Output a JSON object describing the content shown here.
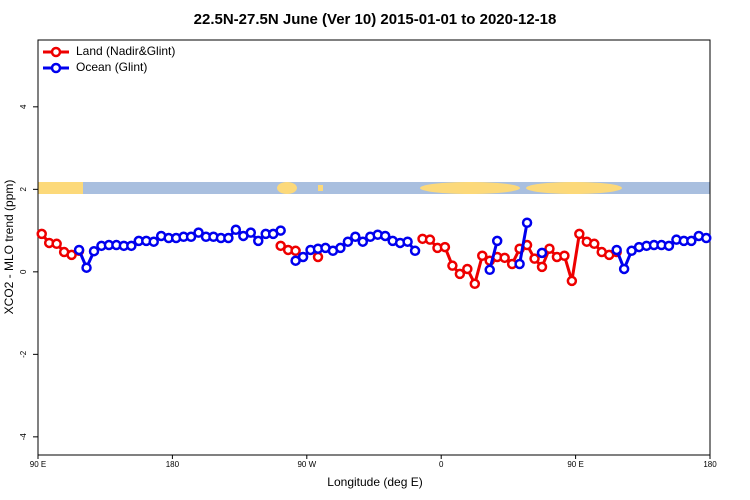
{
  "chart_data": {
    "type": "line",
    "title": "22.5N-27.5N June (Ver 10)   2015-01-01 to 2020-12-18",
    "x_label": "Longitude (deg E)",
    "y_label": "XCO2 - MLO trend (ppm)",
    "x": [
      92.5,
      97.5,
      102.5,
      107.5,
      112.5,
      117.5,
      122.5,
      127.5,
      132.5,
      137.5,
      142.5,
      147.5,
      152.5,
      157.5,
      162.5,
      167.5,
      172.5,
      177.5,
      182.5,
      187.5,
      192.5,
      197.5,
      202.5,
      207.5,
      212.5,
      217.5,
      222.5,
      227.5,
      232.5,
      237.5,
      242.5,
      247.5,
      252.5,
      257.5,
      262.5,
      267.5,
      272.5,
      277.5,
      282.5,
      287.5,
      292.5,
      297.5,
      302.5,
      307.5,
      312.5,
      317.5,
      322.5,
      327.5,
      332.5,
      337.5,
      342.5,
      347.5,
      352.5,
      357.5,
      362.5,
      367.5,
      372.5,
      377.5,
      382.5,
      387.5,
      392.5,
      397.5,
      402.5,
      407.5,
      412.5,
      417.5,
      422.5,
      427.5,
      432.5,
      437.5,
      442.5,
      447.5,
      452.5,
      457.5,
      462.5,
      467.5,
      472.5,
      477.5,
      482.5,
      487.5,
      492.5,
      497.5,
      502.5,
      507.5,
      512.5,
      517.5,
      522.5,
      527.5,
      532.5,
      537.5
    ],
    "series": [
      {
        "name": "Land (Nadir&Glint)",
        "color": "#ee0000",
        "values": [
          0.92,
          0.7,
          0.68,
          0.48,
          0.41,
          0.51,
          null,
          null,
          null,
          null,
          null,
          null,
          null,
          null,
          null,
          null,
          null,
          null,
          null,
          null,
          null,
          null,
          null,
          null,
          null,
          null,
          null,
          null,
          null,
          null,
          null,
          null,
          0.63,
          0.53,
          0.51,
          null,
          null,
          0.36,
          null,
          null,
          null,
          null,
          null,
          null,
          null,
          null,
          null,
          null,
          null,
          null,
          null,
          0.8,
          0.78,
          0.58,
          0.6,
          0.15,
          -0.05,
          0.07,
          -0.29,
          0.39,
          0.27,
          0.36,
          0.34,
          0.19,
          0.56,
          0.65,
          0.32,
          0.12,
          0.56,
          0.36,
          0.39,
          -0.22,
          0.92,
          0.73,
          0.68,
          0.48,
          0.41,
          0.48,
          null,
          null,
          null,
          null,
          null,
          null,
          null,
          null,
          null,
          null,
          null,
          null
        ]
      },
      {
        "name": "Ocean (Glint)",
        "color": "#0000ee",
        "values": [
          null,
          null,
          null,
          null,
          null,
          0.53,
          0.1,
          0.5,
          0.63,
          0.65,
          0.65,
          0.63,
          0.63,
          0.75,
          0.75,
          0.73,
          0.87,
          0.82,
          0.82,
          0.85,
          0.85,
          0.95,
          0.85,
          0.85,
          0.82,
          0.82,
          1.02,
          0.87,
          0.95,
          0.75,
          0.92,
          0.92,
          1.0,
          null,
          0.27,
          0.36,
          0.53,
          0.56,
          0.58,
          0.51,
          0.58,
          0.73,
          0.85,
          0.73,
          0.85,
          0.9,
          0.87,
          0.75,
          0.7,
          0.73,
          0.51,
          null,
          null,
          null,
          null,
          null,
          null,
          null,
          null,
          null,
          0.05,
          0.75,
          null,
          null,
          0.19,
          1.19,
          null,
          0.46,
          null,
          null,
          null,
          null,
          null,
          null,
          null,
          null,
          null,
          0.53,
          0.07,
          0.51,
          0.6,
          0.63,
          0.65,
          0.65,
          0.63,
          0.78,
          0.75,
          0.75,
          0.87,
          0.82
        ]
      }
    ],
    "xlim": [
      90,
      540
    ],
    "xticks": [
      {
        "value": 90,
        "label": "90 E"
      },
      180,
      {
        "value": 270,
        "label": "90 W"
      },
      {
        "value": 360,
        "label": "0"
      },
      {
        "value": 450,
        "label": "90 E"
      },
      {
        "value": 540,
        "label": "180"
      }
    ],
    "ylim": [
      -4.44,
      5.62
    ],
    "yticks": [
      -4,
      -2,
      0,
      2,
      4
    ],
    "legend": "top-left"
  }
}
